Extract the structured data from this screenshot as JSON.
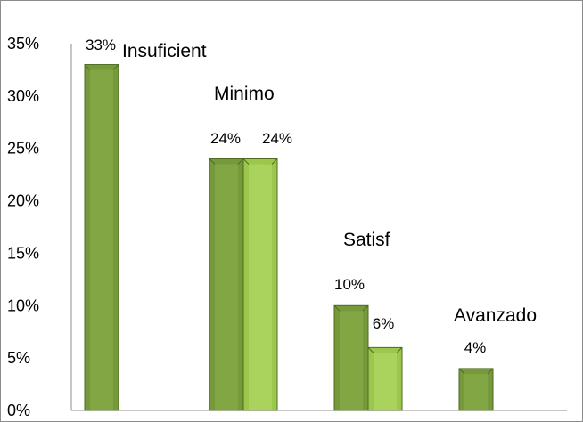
{
  "chart_data": {
    "type": "bar",
    "ylim": [
      0,
      35
    ],
    "yticks": [
      "0%",
      "5%",
      "10%",
      "15%",
      "20%",
      "25%",
      "30%",
      "35%"
    ],
    "ytick_values": [
      0,
      5,
      10,
      15,
      20,
      25,
      30,
      35
    ],
    "xlabel": "",
    "ylabel": "",
    "title": "",
    "grid": false,
    "legend": "none",
    "colors": {
      "dark_bar": "#769a3b",
      "light_bar": "#9bc84c",
      "bar_border": "#4e6b22",
      "axis": "#8c8c8c"
    },
    "bars": [
      {
        "category": "Insuficient",
        "value": 33,
        "label": "33%",
        "shade": "dark"
      },
      {
        "category": "Minimo",
        "value": 24,
        "label": "24%",
        "shade": "dark"
      },
      {
        "category": "Minimo",
        "value": 24,
        "label": "24%",
        "shade": "light"
      },
      {
        "category": "Satisf",
        "value": 10,
        "label": "10%",
        "shade": "dark"
      },
      {
        "category": "Satisf",
        "value": 6,
        "label": "6%",
        "shade": "light"
      },
      {
        "category": "Avanzado",
        "value": 4,
        "label": "4%",
        "shade": "dark"
      }
    ],
    "annotations": [
      "Insuficient",
      "Minimo",
      "Satisf",
      "Avanzado"
    ]
  }
}
